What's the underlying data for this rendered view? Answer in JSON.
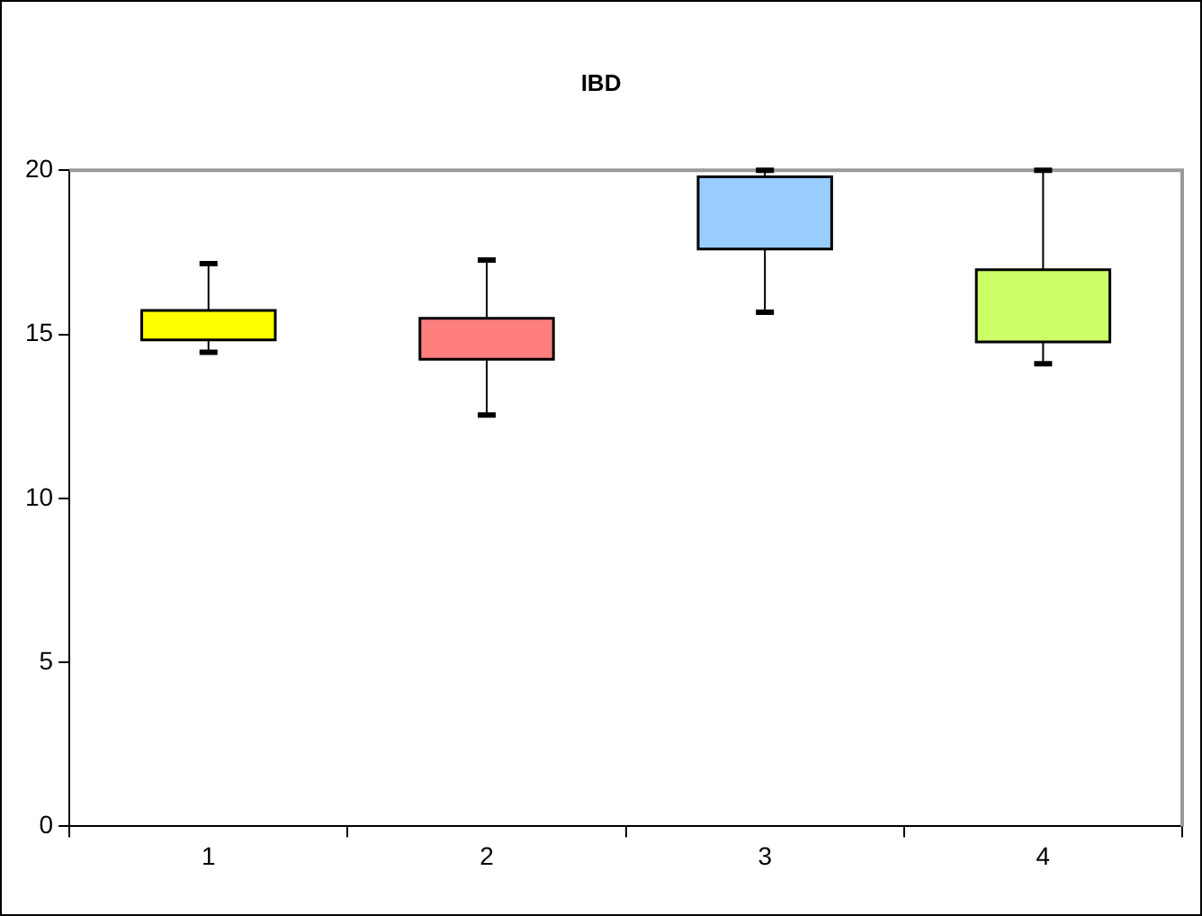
{
  "chart_data": {
    "type": "box",
    "title": "IBD",
    "categories": [
      "1",
      "2",
      "3",
      "4"
    ],
    "boxes": [
      {
        "low": 14.45,
        "q1": 14.83,
        "q3": 15.73,
        "high": 17.15
      },
      {
        "low": 12.54,
        "q1": 14.24,
        "q3": 15.49,
        "high": 17.26
      },
      {
        "low": 15.67,
        "q1": 17.6,
        "q3": 19.8,
        "high": 20.0
      },
      {
        "low": 14.1,
        "q1": 14.77,
        "q3": 16.97,
        "high": 20.0
      }
    ],
    "colors": [
      "#ffff00",
      "#ff7f7f",
      "#99ccff",
      "#ccff66"
    ],
    "ylim": [
      0,
      20
    ],
    "yticks": [
      0,
      5,
      10,
      15,
      20
    ],
    "grid": false,
    "legend": false
  }
}
